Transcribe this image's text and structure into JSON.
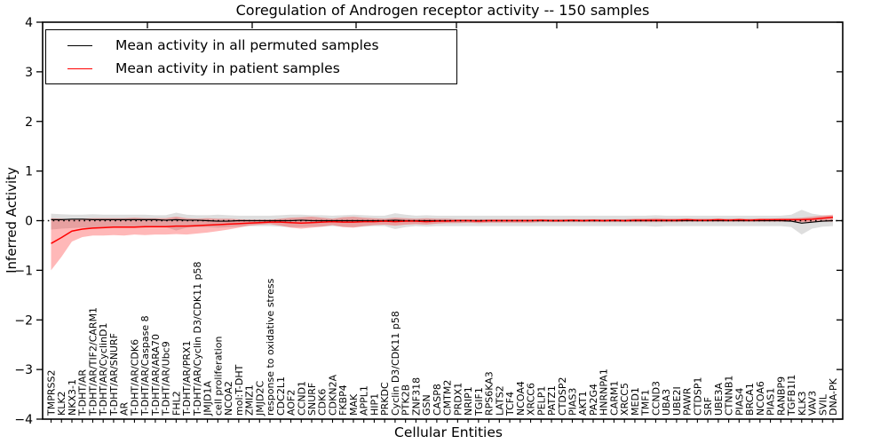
{
  "figure_title": "Coregulation of Androgen receptor activity -- 150 samples",
  "chart_data": {
    "type": "line",
    "title": "Coregulation of Androgen receptor activity -- 150 samples",
    "xlabel": "Cellular Entities",
    "ylabel": "Inferred Activity",
    "ylim": [
      -4,
      4
    ],
    "yticks": [
      -4,
      -3,
      -2,
      -1,
      0,
      1,
      2,
      3,
      4
    ],
    "grid": false,
    "zero_line": {
      "style": "dotted",
      "color": "#000000",
      "y": 0
    },
    "legend": {
      "position": "upper left",
      "entries": [
        {
          "label": "Mean activity in all permuted samples",
          "color": "#000000"
        },
        {
          "label": "Mean activity in patient samples",
          "color": "#ff0000"
        }
      ]
    },
    "categories": [
      "TMPRSS2",
      "KLK2",
      "NKX3-1",
      "T-DHT/AR",
      "T-DHT/AR/TIF2/CARM1",
      "T-DHT/AR/CyclinD1",
      "T-DHT/AR/SNURF",
      "AR",
      "T-DHT/AR/CDK6",
      "T-DHT/AR/Caspase 8",
      "T-DHT/AR/ARA70",
      "T-DHT/AR/Ubc9",
      "FHL2",
      "T-DHT/AR/PRX1",
      "T-DHT/AR/Cyclin D3/CDK11 p58",
      "JMJD1A",
      "cell proliferation",
      "NCOA2",
      "mol:T-DHT",
      "ZMIZ1",
      "JMJD2C",
      "response to oxidative stress",
      "CDC2L1",
      "AOF2",
      "CCND1",
      "SNURF",
      "CDK6",
      "CDKN2A",
      "FKBP4",
      "MAK",
      "APPL1",
      "HIP1",
      "PRKDC",
      "Cyclin D3/CDK11 p58",
      "PTK2B",
      "ZNF318",
      "GSN",
      "CASP8",
      "CMTM2",
      "PRDX1",
      "NRIP1",
      "TGIF1",
      "RPS6KA3",
      "LATS2",
      "TCF4",
      "NCOA4",
      "XRCC6",
      "PELP1",
      "PATZ1",
      "CTDSP2",
      "PIAS3",
      "AKT1",
      "PA2G4",
      "HNRNPA1",
      "CARM1",
      "XRCC5",
      "MED1",
      "TMF1",
      "CCND3",
      "UBA3",
      "UBE2I",
      "PAWR",
      "CTDSP1",
      "SRF",
      "UBE3A",
      "CTNNB1",
      "PIAS4",
      "BRCA1",
      "NCOA6",
      "PIAS1",
      "RANBP9",
      "TGFB1I1",
      "KLK3",
      "VAV3",
      "SVIL",
      "DNA-PK"
    ],
    "series": [
      {
        "name": "Mean activity in all permuted samples",
        "color": "#000000",
        "band_color": "rgba(0,0,0,0.13)",
        "values": [
          0.02,
          0.02,
          0.03,
          0.03,
          0.02,
          0.02,
          0.02,
          0.02,
          0.02,
          0.02,
          0.02,
          0.01,
          0.02,
          0.01,
          0.01,
          0.0,
          -0.01,
          -0.01,
          0.0,
          0.0,
          0.0,
          0.0,
          0.0,
          0.0,
          0.01,
          0.0,
          0.0,
          0.0,
          0.0,
          0.0,
          0.0,
          0.0,
          0.0,
          0.01,
          0.0,
          0.0,
          0.0,
          0.0,
          0.0,
          0.0,
          0.0,
          0.0,
          0.0,
          0.0,
          0.0,
          0.0,
          0.0,
          0.0,
          0.0,
          0.0,
          0.0,
          0.0,
          0.0,
          0.0,
          0.0,
          0.0,
          0.0,
          0.0,
          0.0,
          0.0,
          0.0,
          0.0,
          0.0,
          0.0,
          0.0,
          0.0,
          0.0,
          0.0,
          0.0,
          0.0,
          0.0,
          -0.01,
          -0.05,
          -0.03,
          -0.01,
          0.0
        ],
        "band_upper": [
          0.14,
          0.13,
          0.12,
          0.12,
          0.13,
          0.12,
          0.12,
          0.12,
          0.12,
          0.12,
          0.11,
          0.11,
          0.16,
          0.12,
          0.11,
          0.11,
          0.12,
          0.11,
          0.1,
          0.1,
          0.1,
          0.1,
          0.11,
          0.12,
          0.12,
          0.11,
          0.11,
          0.1,
          0.11,
          0.12,
          0.11,
          0.1,
          0.1,
          0.15,
          0.12,
          0.1,
          0.11,
          0.1,
          0.1,
          0.1,
          0.1,
          0.1,
          0.1,
          0.1,
          0.1,
          0.1,
          0.1,
          0.1,
          0.1,
          0.1,
          0.1,
          0.1,
          0.1,
          0.1,
          0.1,
          0.1,
          0.1,
          0.1,
          0.11,
          0.1,
          0.1,
          0.1,
          0.1,
          0.1,
          0.1,
          0.1,
          0.1,
          0.1,
          0.1,
          0.1,
          0.1,
          0.12,
          0.22,
          0.14,
          0.11,
          0.1
        ],
        "band_lower": [
          -0.18,
          -0.16,
          -0.15,
          -0.14,
          -0.15,
          -0.14,
          -0.14,
          -0.14,
          -0.13,
          -0.14,
          -0.13,
          -0.13,
          -0.2,
          -0.14,
          -0.13,
          -0.13,
          -0.14,
          -0.13,
          -0.12,
          -0.11,
          -0.11,
          -0.11,
          -0.12,
          -0.13,
          -0.13,
          -0.12,
          -0.12,
          -0.11,
          -0.12,
          -0.13,
          -0.12,
          -0.11,
          -0.11,
          -0.17,
          -0.13,
          -0.11,
          -0.12,
          -0.11,
          -0.11,
          -0.11,
          -0.11,
          -0.11,
          -0.11,
          -0.11,
          -0.11,
          -0.11,
          -0.11,
          -0.11,
          -0.11,
          -0.11,
          -0.11,
          -0.11,
          -0.11,
          -0.11,
          -0.11,
          -0.11,
          -0.11,
          -0.11,
          -0.12,
          -0.11,
          -0.11,
          -0.11,
          -0.11,
          -0.11,
          -0.11,
          -0.11,
          -0.11,
          -0.11,
          -0.11,
          -0.11,
          -0.11,
          -0.13,
          -0.28,
          -0.16,
          -0.12,
          -0.11
        ]
      },
      {
        "name": "Mean activity in patient samples",
        "color": "#ff0000",
        "band_color": "rgba(255,0,0,0.28)",
        "values": [
          -0.46,
          -0.34,
          -0.21,
          -0.17,
          -0.15,
          -0.14,
          -0.13,
          -0.13,
          -0.13,
          -0.12,
          -0.12,
          -0.12,
          -0.11,
          -0.11,
          -0.1,
          -0.09,
          -0.08,
          -0.07,
          -0.06,
          -0.05,
          -0.04,
          -0.03,
          -0.03,
          -0.04,
          -0.05,
          -0.04,
          -0.03,
          -0.02,
          -0.03,
          -0.03,
          -0.02,
          -0.02,
          -0.01,
          -0.02,
          -0.01,
          -0.01,
          -0.02,
          -0.01,
          -0.01,
          0.0,
          0.0,
          -0.01,
          0.0,
          0.0,
          0.0,
          0.0,
          0.0,
          0.01,
          0.0,
          0.0,
          0.01,
          0.0,
          0.01,
          0.0,
          0.01,
          0.0,
          0.01,
          0.01,
          0.01,
          0.01,
          0.01,
          0.02,
          0.01,
          0.01,
          0.02,
          0.01,
          0.02,
          0.01,
          0.02,
          0.02,
          0.02,
          0.02,
          0.02,
          0.03,
          0.05,
          0.07
        ],
        "band_upper": [
          0.05,
          0.04,
          0.03,
          0.04,
          0.05,
          0.05,
          0.05,
          0.05,
          0.06,
          0.05,
          0.05,
          0.05,
          0.08,
          0.05,
          0.04,
          0.05,
          0.04,
          0.04,
          0.03,
          0.02,
          0.02,
          0.02,
          0.04,
          0.06,
          0.07,
          0.08,
          0.06,
          0.04,
          0.07,
          0.08,
          0.06,
          0.05,
          0.04,
          0.06,
          0.05,
          0.04,
          0.05,
          0.04,
          0.04,
          0.03,
          0.03,
          0.03,
          0.03,
          0.03,
          0.03,
          0.03,
          0.03,
          0.03,
          0.03,
          0.03,
          0.03,
          0.03,
          0.03,
          0.03,
          0.03,
          0.03,
          0.04,
          0.04,
          0.05,
          0.04,
          0.04,
          0.04,
          0.04,
          0.04,
          0.04,
          0.04,
          0.04,
          0.04,
          0.04,
          0.04,
          0.05,
          0.05,
          0.06,
          0.08,
          0.1,
          0.12
        ],
        "band_lower": [
          -1.0,
          -0.73,
          -0.42,
          -0.33,
          -0.3,
          -0.3,
          -0.29,
          -0.3,
          -0.28,
          -0.29,
          -0.28,
          -0.28,
          -0.27,
          -0.28,
          -0.26,
          -0.24,
          -0.21,
          -0.18,
          -0.14,
          -0.1,
          -0.08,
          -0.07,
          -0.1,
          -0.14,
          -0.16,
          -0.14,
          -0.12,
          -0.09,
          -0.13,
          -0.14,
          -0.11,
          -0.09,
          -0.08,
          -0.1,
          -0.08,
          -0.07,
          -0.08,
          -0.06,
          -0.05,
          -0.05,
          -0.04,
          -0.05,
          -0.04,
          -0.04,
          -0.04,
          -0.04,
          -0.04,
          -0.03,
          -0.03,
          -0.03,
          -0.03,
          -0.03,
          -0.03,
          -0.03,
          -0.03,
          -0.03,
          -0.03,
          -0.03,
          -0.03,
          -0.03,
          -0.03,
          -0.02,
          -0.02,
          -0.02,
          -0.02,
          -0.02,
          -0.02,
          -0.02,
          -0.02,
          -0.02,
          -0.02,
          -0.02,
          -0.03,
          -0.03,
          -0.02,
          -0.02
        ]
      }
    ]
  }
}
